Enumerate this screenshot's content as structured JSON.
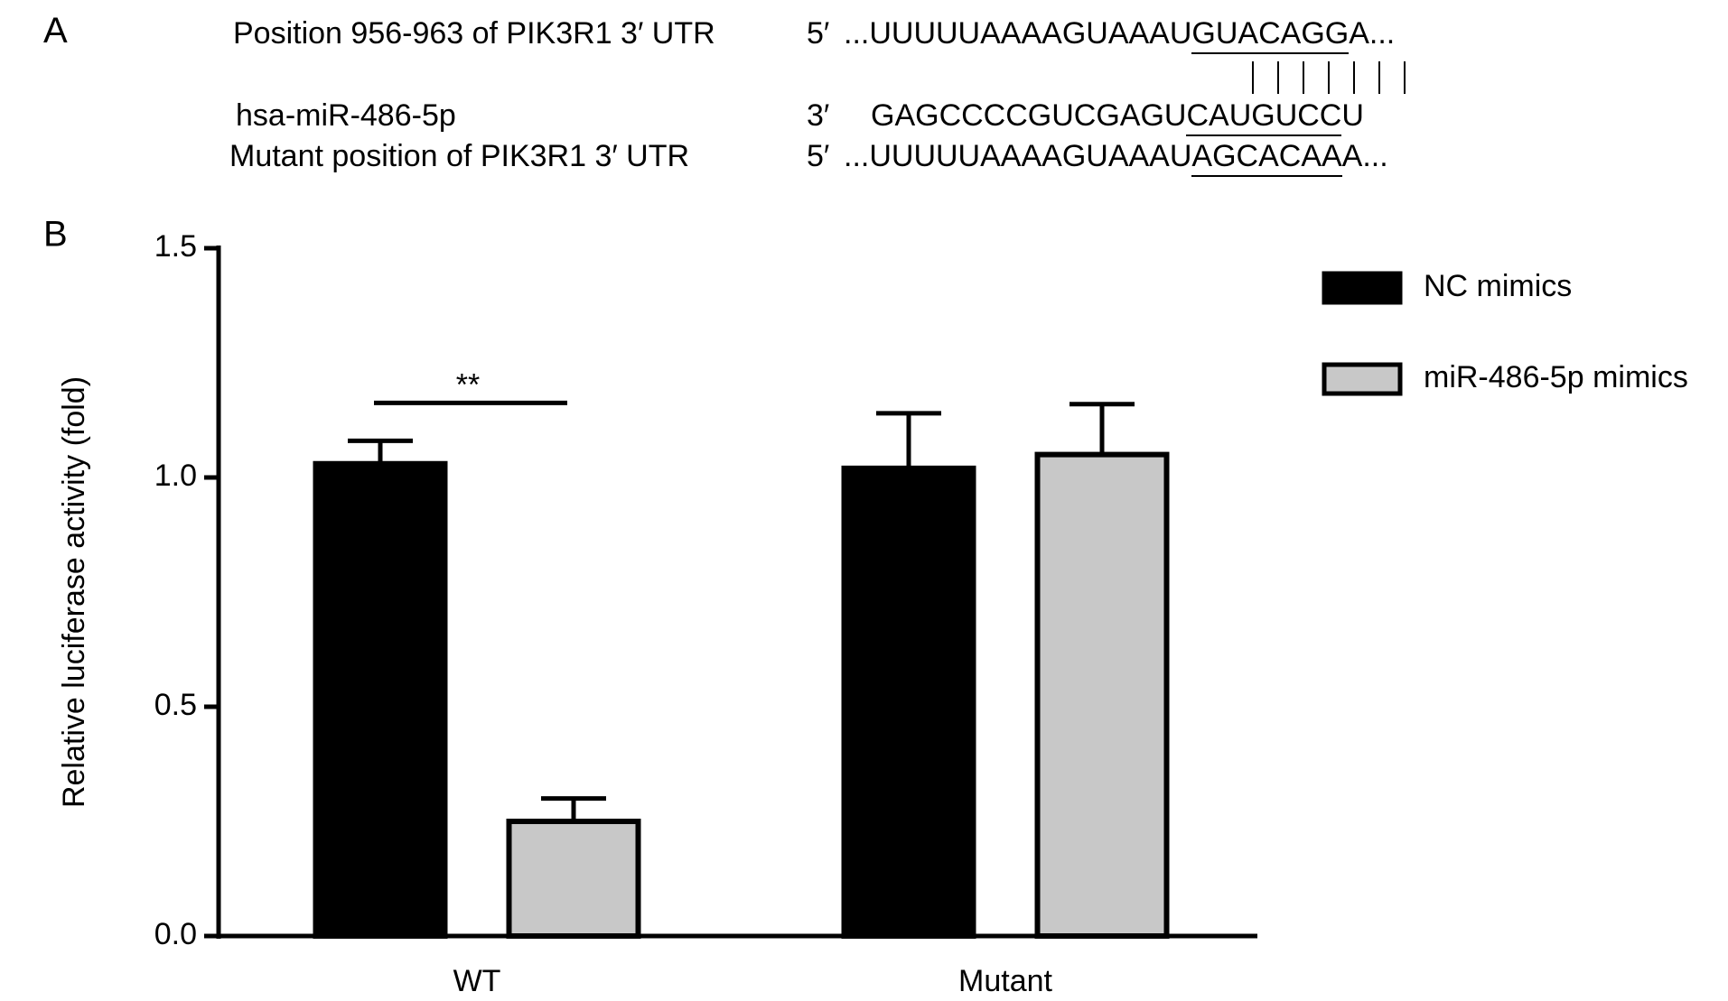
{
  "panel_a": {
    "label": "A",
    "rows": [
      {
        "name": "Position 956-963 of PIK3R1 3′ UTR",
        "end": "5′",
        "before": "...UUUUUAAAAGUAAAU",
        "site": "GUACAGG",
        "after": "A..."
      },
      {
        "name": "hsa-miR-486-5p",
        "end": "3′",
        "before": "GAGCCCCGUCGAGU",
        "site": "CAUGUCC",
        "after": "U"
      },
      {
        "name": "Mutant position of PIK3R1 3′ UTR",
        "end": "5′",
        "before": "...UUUUUAAAAGUAAAU",
        "site": "AGCACAA",
        "after": "A..."
      }
    ]
  },
  "chart_data": {
    "type": "bar",
    "panel_label": "B",
    "y_label": "Relative luciferase activity (fold)",
    "categories": [
      "WT",
      "Mutant"
    ],
    "series": [
      {
        "name": "NC mimics",
        "color": "#000000",
        "values": [
          1.03,
          1.02
        ],
        "errors": [
          0.05,
          0.12
        ]
      },
      {
        "name": "miR-486-5p mimics",
        "color": "#c8c8c8",
        "values": [
          0.25,
          1.05
        ],
        "errors": [
          0.05,
          0.11
        ]
      }
    ],
    "ylim": [
      0,
      1.5
    ],
    "yticks": [
      {
        "value": 0,
        "label": "0.0"
      },
      0.5,
      {
        "value": 1,
        "label": "1.0"
      },
      1.5
    ],
    "legend": "right",
    "annotation": {
      "text": "**",
      "category": 0
    }
  }
}
